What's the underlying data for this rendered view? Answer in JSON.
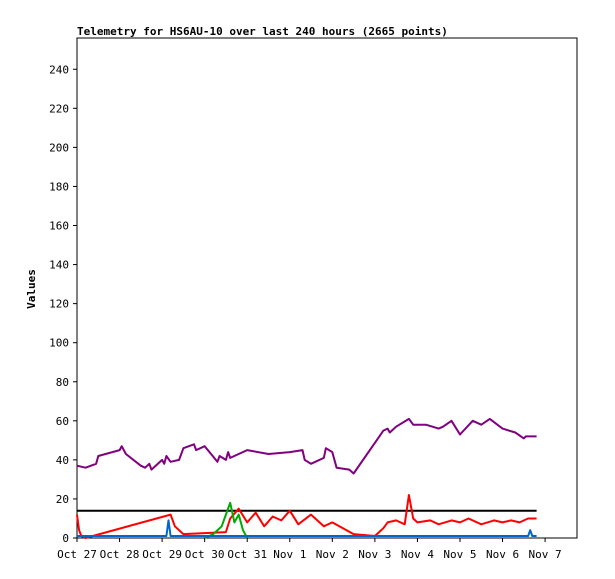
{
  "chart_data": {
    "type": "line",
    "title": "Telemetry for HS6AU-10 over last 240 hours (2665 points)",
    "xlabel": "",
    "ylabel": "Values",
    "x_ticks": [
      "Oct 27",
      "Oct 28",
      "Oct 29",
      "Oct 30",
      "Oct 31",
      "Nov 1",
      "Nov 2",
      "Nov 3",
      "Nov 4",
      "Nov 5",
      "Nov 6",
      "Nov 7"
    ],
    "y_ticks": [
      0,
      20,
      40,
      60,
      80,
      100,
      120,
      140,
      160,
      180,
      200,
      220,
      240
    ],
    "xlim": [
      0,
      11.75
    ],
    "ylim": [
      0,
      256
    ],
    "grid": false,
    "legend": "none",
    "series": [
      {
        "color": "#800080",
        "x": [
          0.0,
          0.2,
          0.45,
          0.5,
          1.0,
          1.05,
          1.15,
          1.5,
          1.6,
          1.7,
          1.75,
          2.0,
          2.05,
          2.1,
          2.2,
          2.4,
          2.5,
          2.75,
          2.8,
          3.0,
          3.3,
          3.35,
          3.5,
          3.55,
          3.6,
          4.0,
          4.5,
          5.0,
          5.3,
          5.35,
          5.5,
          5.8,
          5.85,
          6.0,
          6.1,
          6.4,
          6.5,
          7.2,
          7.3,
          7.35,
          7.5,
          7.8,
          7.9,
          8.2,
          8.5,
          8.6,
          8.8,
          9.0,
          9.3,
          9.5,
          9.7,
          10.0,
          10.3,
          10.5,
          10.55,
          10.8
        ],
        "y": [
          37,
          36,
          38,
          42,
          45,
          47,
          43,
          37,
          36,
          38,
          35,
          40,
          38,
          42,
          39,
          40,
          46,
          48,
          45,
          47,
          39,
          42,
          40,
          44,
          41,
          45,
          43,
          44,
          45,
          40,
          38,
          41,
          46,
          44,
          36,
          35,
          33,
          55,
          56,
          54,
          57,
          61,
          58,
          58,
          56,
          57,
          60,
          53,
          60,
          58,
          61,
          56,
          54,
          51,
          52,
          52
        ]
      },
      {
        "color": "#000000",
        "x": [
          0.0,
          10.8
        ],
        "y": [
          14,
          14
        ]
      },
      {
        "color": "#ff0000",
        "x": [
          0.0,
          0.05,
          0.1,
          0.2,
          2.2,
          2.3,
          2.5,
          3.5,
          3.6,
          3.8,
          4.0,
          4.2,
          4.4,
          4.6,
          4.8,
          5.0,
          5.2,
          5.5,
          5.8,
          6.0,
          6.5,
          7.0,
          7.2,
          7.3,
          7.5,
          7.7,
          7.8,
          7.9,
          8.0,
          8.3,
          8.5,
          8.8,
          9.0,
          9.2,
          9.5,
          9.8,
          10.0,
          10.2,
          10.4,
          10.6,
          10.8
        ],
        "y": [
          12,
          4,
          1,
          0,
          12,
          6,
          2,
          3,
          10,
          15,
          8,
          13,
          6,
          11,
          9,
          14,
          7,
          12,
          6,
          8,
          2,
          1,
          5,
          8,
          9,
          7,
          22,
          10,
          8,
          9,
          7,
          9,
          8,
          10,
          7,
          9,
          8,
          9,
          8,
          10,
          10
        ]
      },
      {
        "color": "#00aa00",
        "x": [
          3.0,
          3.2,
          3.4,
          3.5,
          3.6,
          3.7,
          3.8,
          3.9,
          4.0
        ],
        "y": [
          0,
          2,
          6,
          12,
          18,
          8,
          12,
          4,
          0
        ]
      },
      {
        "color": "#0066cc",
        "x": [
          0.0,
          2.1,
          2.15,
          2.2,
          10.6,
          10.65,
          10.7,
          10.8
        ],
        "y": [
          1,
          1,
          9,
          1,
          1,
          4,
          1,
          1
        ]
      }
    ]
  }
}
